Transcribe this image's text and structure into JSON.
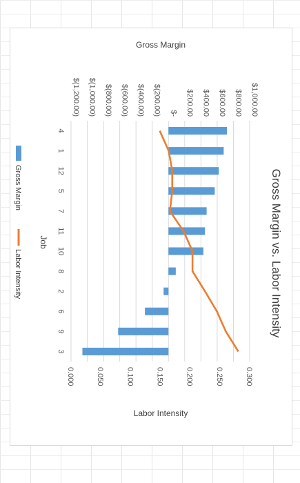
{
  "chart_data": {
    "type": "bar",
    "title": "Gross Margin vs. Labor Intensity",
    "xlabel": "Job",
    "categories": [
      "4",
      "1",
      "12",
      "5",
      "7",
      "11",
      "10",
      "8",
      "2",
      "6",
      "9",
      "3"
    ],
    "series": [
      {
        "name": "Gross Margin",
        "type": "bar",
        "axis": "Gross Margin",
        "color": "#5B9BD5",
        "values": [
          720,
          680,
          620,
          570,
          470,
          450,
          430,
          90,
          -60,
          -290,
          -620,
          -1060
        ]
      },
      {
        "name": "Labor Intensity",
        "type": "line",
        "axis": "Labor Intensity",
        "color": "#ED7D31",
        "values": [
          0.149,
          0.164,
          0.17,
          0.17,
          0.166,
          0.189,
          0.204,
          0.204,
          0.225,
          0.245,
          0.26,
          0.281
        ]
      }
    ],
    "y_left": {
      "label": "Gross Margin",
      "ticks": [
        "$(1,200.00)",
        "$(1,000.00)",
        "$(800.00)",
        "$(600.00)",
        "$(400.00)",
        "$(200.00)",
        "$-",
        "$200.00",
        "$400.00",
        "$600.00",
        "$800.00",
        "$1,000.00"
      ],
      "ylim": [
        -1200,
        1000
      ]
    },
    "y_right": {
      "label": "Labor Intensity",
      "ticks": [
        "0.000",
        "0.050",
        "0.100",
        "0.150",
        "0.200",
        "0.250",
        "0.300"
      ],
      "ylim": [
        0,
        0.3
      ]
    },
    "gridlines": true,
    "legend": {
      "position": "bottom",
      "items": [
        "Gross Margin",
        "Labor Intensity"
      ]
    },
    "orientation": "rotated 90 degrees clockwise"
  }
}
